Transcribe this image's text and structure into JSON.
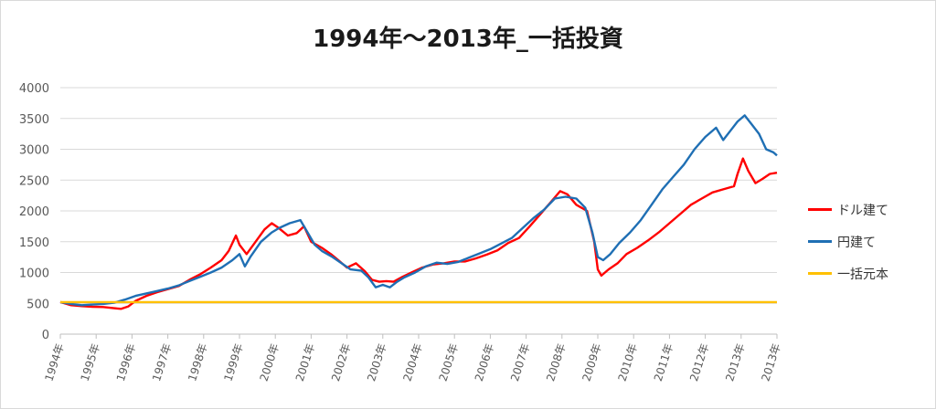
{
  "chart_data": {
    "type": "line",
    "title": "1994年～2013年_一括投資",
    "xlabel": "",
    "ylabel": "",
    "x": [
      "1994年",
      "1995年",
      "1996年",
      "1997年",
      "1998年",
      "1999年",
      "2000年",
      "2001年",
      "2002年",
      "2003年",
      "2004年",
      "2005年",
      "2006年",
      "2007年",
      "2008年",
      "2009年",
      "2010年",
      "2011年",
      "2012年",
      "2013年",
      "2013年"
    ],
    "ylim": [
      0,
      4000
    ],
    "yticks": [
      0,
      500,
      1000,
      1500,
      2000,
      2500,
      3000,
      3500,
      4000
    ],
    "grid": true,
    "legend_position": "right",
    "series": [
      {
        "name": "ドル建て",
        "color": "#ff0000",
        "points": [
          [
            0,
            520
          ],
          [
            0.3,
            470
          ],
          [
            0.6,
            455
          ],
          [
            0.9,
            445
          ],
          [
            1.2,
            440
          ],
          [
            1.5,
            420
          ],
          [
            1.7,
            410
          ],
          [
            1.9,
            450
          ],
          [
            2.1,
            540
          ],
          [
            2.4,
            620
          ],
          [
            2.7,
            680
          ],
          [
            3.0,
            730
          ],
          [
            3.3,
            780
          ],
          [
            3.6,
            880
          ],
          [
            3.9,
            970
          ],
          [
            4.2,
            1080
          ],
          [
            4.5,
            1200
          ],
          [
            4.7,
            1350
          ],
          [
            4.9,
            1600
          ],
          [
            5.0,
            1450
          ],
          [
            5.2,
            1300
          ],
          [
            5.45,
            1500
          ],
          [
            5.7,
            1700
          ],
          [
            5.9,
            1800
          ],
          [
            6.1,
            1720
          ],
          [
            6.35,
            1600
          ],
          [
            6.6,
            1640
          ],
          [
            6.8,
            1750
          ],
          [
            7.0,
            1500
          ],
          [
            7.3,
            1400
          ],
          [
            7.55,
            1300
          ],
          [
            7.8,
            1180
          ],
          [
            8.0,
            1080
          ],
          [
            8.25,
            1150
          ],
          [
            8.5,
            1020
          ],
          [
            8.7,
            880
          ],
          [
            8.9,
            850
          ],
          [
            9.1,
            860
          ],
          [
            9.3,
            850
          ],
          [
            9.55,
            930
          ],
          [
            9.8,
            1000
          ],
          [
            10.1,
            1080
          ],
          [
            10.4,
            1130
          ],
          [
            10.7,
            1150
          ],
          [
            11.0,
            1180
          ],
          [
            11.3,
            1180
          ],
          [
            11.6,
            1230
          ],
          [
            11.9,
            1290
          ],
          [
            12.2,
            1360
          ],
          [
            12.5,
            1480
          ],
          [
            12.8,
            1560
          ],
          [
            13.1,
            1750
          ],
          [
            13.4,
            1950
          ],
          [
            13.7,
            2150
          ],
          [
            13.95,
            2320
          ],
          [
            14.15,
            2270
          ],
          [
            14.4,
            2100
          ],
          [
            14.7,
            2000
          ],
          [
            14.9,
            1500
          ],
          [
            15.0,
            1050
          ],
          [
            15.1,
            950
          ],
          [
            15.3,
            1050
          ],
          [
            15.55,
            1150
          ],
          [
            15.8,
            1300
          ],
          [
            16.1,
            1400
          ],
          [
            16.4,
            1520
          ],
          [
            16.7,
            1650
          ],
          [
            17.0,
            1800
          ],
          [
            17.3,
            1950
          ],
          [
            17.6,
            2100
          ],
          [
            17.9,
            2200
          ],
          [
            18.2,
            2300
          ],
          [
            18.5,
            2350
          ],
          [
            18.8,
            2400
          ],
          [
            18.9,
            2600
          ],
          [
            19.05,
            2850
          ],
          [
            19.2,
            2650
          ],
          [
            19.4,
            2450
          ],
          [
            19.6,
            2520
          ],
          [
            19.8,
            2600
          ],
          [
            20.0,
            2620
          ]
        ]
      },
      {
        "name": "円建て",
        "color": "#1f6fb4",
        "points": [
          [
            0,
            520
          ],
          [
            0.3,
            490
          ],
          [
            0.6,
            470
          ],
          [
            0.9,
            480
          ],
          [
            1.2,
            490
          ],
          [
            1.5,
            510
          ],
          [
            1.8,
            560
          ],
          [
            2.1,
            620
          ],
          [
            2.4,
            660
          ],
          [
            2.7,
            700
          ],
          [
            3.0,
            740
          ],
          [
            3.3,
            790
          ],
          [
            3.6,
            860
          ],
          [
            3.9,
            930
          ],
          [
            4.2,
            1000
          ],
          [
            4.5,
            1080
          ],
          [
            4.8,
            1200
          ],
          [
            5.0,
            1300
          ],
          [
            5.15,
            1100
          ],
          [
            5.3,
            1250
          ],
          [
            5.6,
            1500
          ],
          [
            5.9,
            1650
          ],
          [
            6.1,
            1720
          ],
          [
            6.4,
            1800
          ],
          [
            6.7,
            1850
          ],
          [
            6.9,
            1650
          ],
          [
            7.1,
            1450
          ],
          [
            7.3,
            1350
          ],
          [
            7.6,
            1250
          ],
          [
            7.85,
            1150
          ],
          [
            8.1,
            1050
          ],
          [
            8.4,
            1030
          ],
          [
            8.6,
            920
          ],
          [
            8.8,
            760
          ],
          [
            9.0,
            800
          ],
          [
            9.2,
            760
          ],
          [
            9.4,
            850
          ],
          [
            9.6,
            920
          ],
          [
            9.9,
            1000
          ],
          [
            10.2,
            1100
          ],
          [
            10.5,
            1160
          ],
          [
            10.8,
            1140
          ],
          [
            11.1,
            1170
          ],
          [
            11.4,
            1240
          ],
          [
            11.7,
            1310
          ],
          [
            12.0,
            1380
          ],
          [
            12.3,
            1470
          ],
          [
            12.6,
            1560
          ],
          [
            12.9,
            1720
          ],
          [
            13.2,
            1880
          ],
          [
            13.5,
            2020
          ],
          [
            13.8,
            2200
          ],
          [
            14.1,
            2230
          ],
          [
            14.4,
            2200
          ],
          [
            14.65,
            2050
          ],
          [
            14.85,
            1650
          ],
          [
            15.0,
            1250
          ],
          [
            15.15,
            1200
          ],
          [
            15.35,
            1300
          ],
          [
            15.6,
            1480
          ],
          [
            15.9,
            1650
          ],
          [
            16.2,
            1850
          ],
          [
            16.5,
            2100
          ],
          [
            16.8,
            2350
          ],
          [
            17.1,
            2550
          ],
          [
            17.4,
            2750
          ],
          [
            17.7,
            3000
          ],
          [
            18.0,
            3200
          ],
          [
            18.3,
            3350
          ],
          [
            18.5,
            3150
          ],
          [
            18.7,
            3300
          ],
          [
            18.9,
            3450
          ],
          [
            19.1,
            3550
          ],
          [
            19.3,
            3400
          ],
          [
            19.5,
            3250
          ],
          [
            19.7,
            3000
          ],
          [
            19.9,
            2950
          ],
          [
            20.0,
            2900
          ]
        ]
      },
      {
        "name": "一括元本",
        "color": "#ffc000",
        "points": [
          [
            0,
            520
          ],
          [
            20,
            520
          ]
        ]
      }
    ]
  }
}
